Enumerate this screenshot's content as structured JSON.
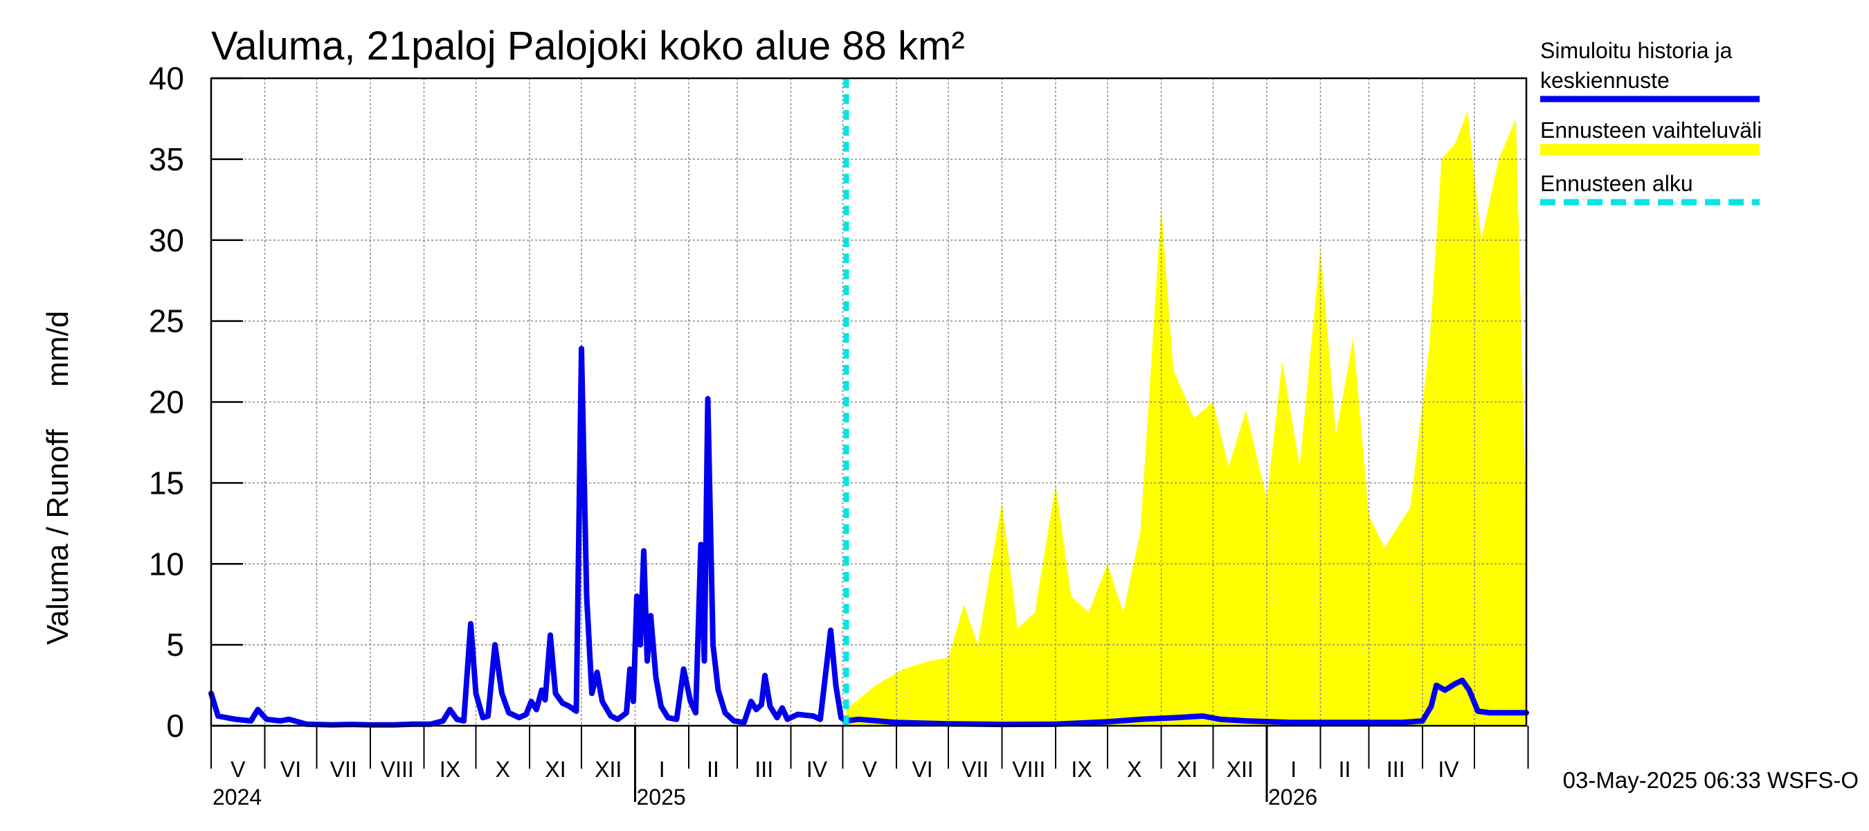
{
  "chart_data": {
    "type": "line",
    "title": "Valuma, 21paloj Palojoki koko alue 88 km²",
    "ylabel": "Valuma / Runoff     mm/d",
    "ylim": [
      0,
      40
    ],
    "yticks": [
      0,
      5,
      10,
      15,
      20,
      25,
      30,
      35,
      40
    ],
    "x_start": "2024-05-01",
    "x_end": "2026-05-31",
    "forecast_start": "2025-05-03",
    "months": [
      "V",
      "VI",
      "VII",
      "VIII",
      "IX",
      "X",
      "XI",
      "XII",
      "I",
      "II",
      "III",
      "IV",
      "V",
      "VI",
      "VII",
      "VIII",
      "IX",
      "X",
      "XI",
      "XII",
      "I",
      "II",
      "III",
      "IV"
    ],
    "years": [
      "2024",
      "2025",
      "2026"
    ],
    "series": [
      {
        "name": "Simuloitu historia ja keskiennuste",
        "color": "#0000ee",
        "points": [
          [
            "2024-05-01",
            2.0
          ],
          [
            "2024-05-05",
            0.6
          ],
          [
            "2024-05-15",
            0.4
          ],
          [
            "2024-05-24",
            0.3
          ],
          [
            "2024-05-28",
            1.0
          ],
          [
            "2024-06-02",
            0.4
          ],
          [
            "2024-06-10",
            0.3
          ],
          [
            "2024-06-15",
            0.4
          ],
          [
            "2024-06-25",
            0.1
          ],
          [
            "2024-07-10",
            0.05
          ],
          [
            "2024-07-20",
            0.08
          ],
          [
            "2024-08-01",
            0.05
          ],
          [
            "2024-08-15",
            0.05
          ],
          [
            "2024-08-25",
            0.1
          ],
          [
            "2024-09-05",
            0.1
          ],
          [
            "2024-09-12",
            0.3
          ],
          [
            "2024-09-16",
            1.0
          ],
          [
            "2024-09-20",
            0.4
          ],
          [
            "2024-09-24",
            0.3
          ],
          [
            "2024-09-28",
            6.3
          ],
          [
            "2024-10-01",
            2.0
          ],
          [
            "2024-10-05",
            0.5
          ],
          [
            "2024-10-08",
            0.6
          ],
          [
            "2024-10-12",
            5.0
          ],
          [
            "2024-10-16",
            2.0
          ],
          [
            "2024-10-20",
            0.8
          ],
          [
            "2024-10-26",
            0.5
          ],
          [
            "2024-10-30",
            0.7
          ],
          [
            "2024-11-02",
            1.5
          ],
          [
            "2024-11-05",
            1.0
          ],
          [
            "2024-11-08",
            2.2
          ],
          [
            "2024-11-10",
            1.6
          ],
          [
            "2024-11-13",
            5.6
          ],
          [
            "2024-11-16",
            2.0
          ],
          [
            "2024-11-20",
            1.4
          ],
          [
            "2024-11-24",
            1.2
          ],
          [
            "2024-11-28",
            0.9
          ],
          [
            "2024-12-01",
            23.3
          ],
          [
            "2024-12-04",
            8.0
          ],
          [
            "2024-12-07",
            2.0
          ],
          [
            "2024-12-10",
            3.3
          ],
          [
            "2024-12-13",
            1.5
          ],
          [
            "2024-12-18",
            0.6
          ],
          [
            "2024-12-22",
            0.4
          ],
          [
            "2024-12-27",
            0.8
          ],
          [
            "2024-12-29",
            3.5
          ],
          [
            "2024-12-31",
            1.5
          ],
          [
            "2025-01-02",
            8.0
          ],
          [
            "2025-01-04",
            5.0
          ],
          [
            "2025-01-06",
            10.8
          ],
          [
            "2025-01-08",
            4.0
          ],
          [
            "2025-01-10",
            6.8
          ],
          [
            "2025-01-13",
            3.0
          ],
          [
            "2025-01-16",
            1.2
          ],
          [
            "2025-01-20",
            0.5
          ],
          [
            "2025-01-25",
            0.4
          ],
          [
            "2025-01-29",
            3.5
          ],
          [
            "2025-02-02",
            1.5
          ],
          [
            "2025-02-05",
            0.8
          ],
          [
            "2025-02-08",
            11.2
          ],
          [
            "2025-02-10",
            4.0
          ],
          [
            "2025-02-12",
            20.2
          ],
          [
            "2025-02-15",
            5.0
          ],
          [
            "2025-02-18",
            2.2
          ],
          [
            "2025-02-22",
            0.8
          ],
          [
            "2025-02-27",
            0.3
          ],
          [
            "2025-03-05",
            0.2
          ],
          [
            "2025-03-09",
            1.5
          ],
          [
            "2025-03-12",
            1.0
          ],
          [
            "2025-03-15",
            1.3
          ],
          [
            "2025-03-17",
            3.1
          ],
          [
            "2025-03-20",
            1.2
          ],
          [
            "2025-03-24",
            0.5
          ],
          [
            "2025-03-27",
            1.1
          ],
          [
            "2025-03-30",
            0.4
          ],
          [
            "2025-04-05",
            0.7
          ],
          [
            "2025-04-14",
            0.6
          ],
          [
            "2025-04-18",
            0.4
          ],
          [
            "2025-04-24",
            5.9
          ],
          [
            "2025-04-27",
            2.5
          ],
          [
            "2025-04-30",
            0.5
          ],
          [
            "2025-05-03",
            0.3
          ],
          [
            "2025-05-10",
            0.4
          ],
          [
            "2025-06-01",
            0.2
          ],
          [
            "2025-07-01",
            0.12
          ],
          [
            "2025-08-01",
            0.08
          ],
          [
            "2025-09-01",
            0.1
          ],
          [
            "2025-10-01",
            0.25
          ],
          [
            "2025-10-20",
            0.4
          ],
          [
            "2025-11-10",
            0.5
          ],
          [
            "2025-11-25",
            0.6
          ],
          [
            "2025-12-05",
            0.4
          ],
          [
            "2025-12-20",
            0.3
          ],
          [
            "2026-01-15",
            0.2
          ],
          [
            "2026-02-15",
            0.2
          ],
          [
            "2026-03-20",
            0.2
          ],
          [
            "2026-04-01",
            0.3
          ],
          [
            "2026-04-06",
            1.2
          ],
          [
            "2026-04-09",
            2.5
          ],
          [
            "2026-04-14",
            2.2
          ],
          [
            "2026-04-20",
            2.6
          ],
          [
            "2026-04-24",
            2.8
          ],
          [
            "2026-04-28",
            2.2
          ],
          [
            "2026-05-03",
            0.9
          ],
          [
            "2026-05-10",
            0.8
          ],
          [
            "2026-05-31",
            0.8
          ]
        ]
      },
      {
        "name": "Ennusteen vaihteluväli",
        "color": "#ffff00",
        "points": [
          [
            "2025-05-03",
            1.0
          ],
          [
            "2025-05-20",
            2.5
          ],
          [
            "2025-06-05",
            3.5
          ],
          [
            "2025-06-20",
            4.0
          ],
          [
            "2025-07-01",
            4.2
          ],
          [
            "2025-07-10",
            7.5
          ],
          [
            "2025-07-18",
            5.0
          ],
          [
            "2025-08-01",
            13.8
          ],
          [
            "2025-08-10",
            6.0
          ],
          [
            "2025-08-20",
            7.0
          ],
          [
            "2025-09-01",
            14.9
          ],
          [
            "2025-09-10",
            8.0
          ],
          [
            "2025-09-20",
            7.0
          ],
          [
            "2025-10-01",
            10.0
          ],
          [
            "2025-10-10",
            7.0
          ],
          [
            "2025-10-20",
            12.0
          ],
          [
            "2025-11-01",
            32.0
          ],
          [
            "2025-11-08",
            22.0
          ],
          [
            "2025-11-20",
            19.0
          ],
          [
            "2025-12-01",
            20.0
          ],
          [
            "2025-12-10",
            16.0
          ],
          [
            "2025-12-20",
            19.5
          ],
          [
            "2026-01-01",
            14.0
          ],
          [
            "2026-01-10",
            22.5
          ],
          [
            "2026-01-20",
            16.0
          ],
          [
            "2026-02-01",
            29.5
          ],
          [
            "2026-02-10",
            18.0
          ],
          [
            "2026-02-20",
            24.0
          ],
          [
            "2026-03-01",
            13.0
          ],
          [
            "2026-03-10",
            11.0
          ],
          [
            "2026-03-25",
            13.5
          ],
          [
            "2026-04-05",
            23.5
          ],
          [
            "2026-04-12",
            35.0
          ],
          [
            "2026-04-20",
            36.0
          ],
          [
            "2026-04-27",
            38.0
          ],
          [
            "2026-05-05",
            30.0
          ],
          [
            "2026-05-15",
            35.0
          ],
          [
            "2026-05-25",
            37.5
          ],
          [
            "2026-05-31",
            12.0
          ]
        ]
      }
    ],
    "legend": [
      {
        "label": "Simuloitu historia ja",
        "label2": "keskiennuste",
        "color": "#0000ee",
        "style": "solid"
      },
      {
        "label": "Ennusteen vaihteluväli",
        "color": "#ffff00",
        "style": "solid"
      },
      {
        "label": "Ennusteen alku",
        "color": "#00e5e5",
        "style": "dashed"
      }
    ],
    "footer": "03-May-2025 06:33 WSFS-O",
    "grid": true
  }
}
